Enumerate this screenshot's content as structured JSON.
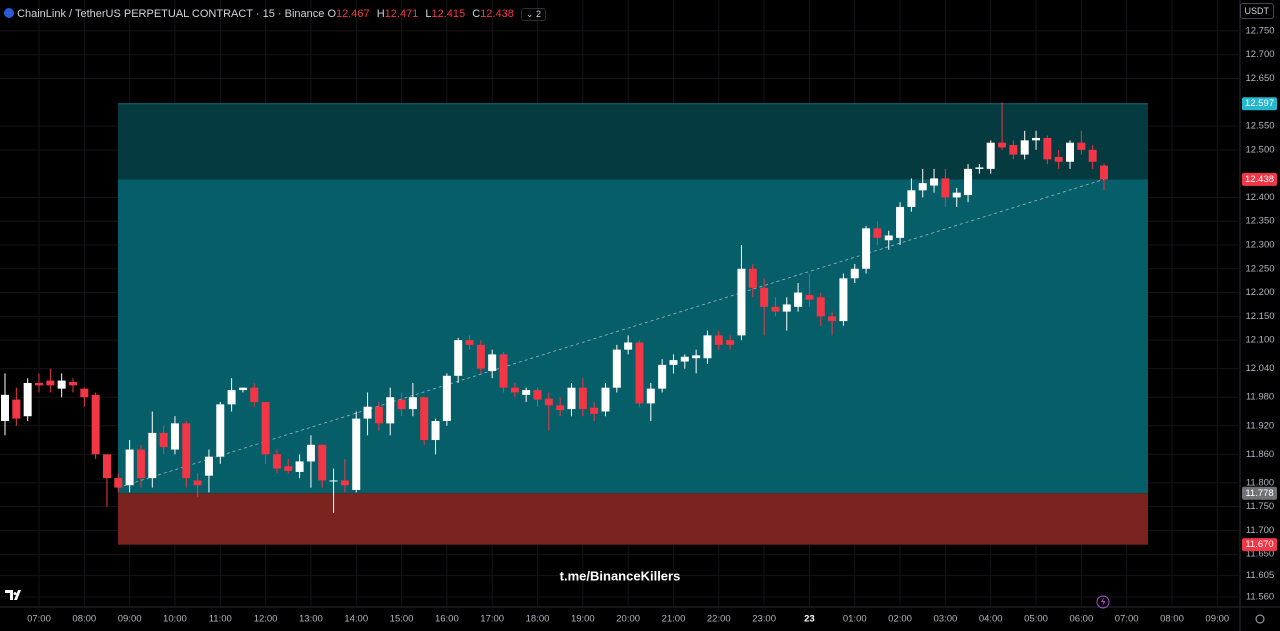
{
  "header": {
    "symbol": "ChainLink / TetherUS PERPETUAL CONTRACT · 15 · Binance",
    "ohlc_letters": [
      "O",
      "H",
      "L",
      "C"
    ],
    "indicator_count": "2",
    "currency": "USDT"
  },
  "watermark": "t.me/BinanceKillers",
  "chart_data": {
    "type": "candlestick",
    "categories": [
      null,
      null,
      null,
      "07:00",
      null,
      null,
      null,
      "08:00",
      null,
      null,
      null,
      "09:00",
      null,
      null,
      null,
      "10:00",
      null,
      null,
      null,
      "11:00",
      null,
      null,
      null,
      "12:00",
      null,
      null,
      null,
      "13:00",
      null,
      null,
      null,
      "14:00",
      null,
      null,
      null,
      "15:00",
      null,
      null,
      null,
      "16:00",
      null,
      null,
      null,
      "17:00",
      null,
      null,
      null,
      "18:00",
      null,
      null,
      null,
      "19:00",
      null,
      null,
      null,
      "20:00",
      null,
      null,
      null,
      "21:00",
      null,
      null,
      null,
      "22:00",
      null,
      null,
      null,
      "23:00",
      null,
      null,
      null,
      "23",
      null,
      null,
      null,
      "01:00",
      null,
      null,
      null,
      "02:00",
      null,
      null,
      null,
      "03:00",
      null,
      null,
      null,
      "04:00",
      null,
      null,
      null,
      "05:00",
      null,
      null,
      null,
      "06:00",
      null,
      null,
      null,
      "07:00",
      null,
      null,
      null,
      "08:00",
      null,
      null,
      null,
      "09:00",
      null
    ],
    "open": [
      11.93,
      11.975,
      11.94,
      12.01,
      12.015,
      11.998,
      12.012,
      11.998,
      11.985,
      11.86,
      11.81,
      11.795,
      11.87,
      11.81,
      11.905,
      11.87,
      11.925,
      11.805,
      11.815,
      11.855,
      11.965,
      11.995,
      12.0,
      11.97,
      11.86,
      11.835,
      11.823,
      11.845,
      11.88,
      11.805,
      11.805,
      11.785,
      11.935,
      11.96,
      11.925,
      11.975,
      11.955,
      11.98,
      11.89,
      11.93,
      12.025,
      12.1,
      12.09,
      12.035,
      12.07,
      12.0,
      11.985,
      11.995,
      11.977,
      11.963,
      11.955,
      12.0,
      11.958,
      11.95,
      12.0,
      12.08,
      12.095,
      11.967,
      11.998,
      12.048,
      12.055,
      12.062,
      12.062,
      12.11,
      12.1,
      12.11,
      12.25,
      12.21,
      12.17,
      12.16,
      12.17,
      12.195,
      12.19,
      12.15,
      12.14,
      12.23,
      12.25,
      12.335,
      12.31,
      12.315,
      12.38,
      12.415,
      12.425,
      12.44,
      12.4,
      12.405,
      12.46,
      12.46,
      12.515,
      12.51,
      12.49,
      12.52,
      12.525,
      12.485,
      12.475,
      12.515,
      12.5,
      12.467,
      null,
      null,
      null,
      null,
      null,
      null,
      null,
      null,
      null,
      null,
      null
    ],
    "high": [
      12.03,
      12.0,
      12.02,
      12.03,
      12.04,
      12.03,
      12.02,
      12.0,
      11.99,
      11.86,
      11.82,
      11.89,
      11.88,
      11.95,
      11.92,
      11.94,
      11.93,
      11.82,
      11.87,
      11.97,
      12.02,
      12.0,
      12.01,
      11.97,
      11.87,
      11.85,
      11.86,
      11.9,
      11.88,
      11.83,
      11.85,
      11.95,
      11.99,
      11.97,
      12.0,
      11.99,
      12.01,
      11.98,
      11.935,
      12.03,
      12.105,
      12.11,
      12.1,
      12.08,
      12.075,
      12.01,
      12.0,
      12.0,
      11.99,
      11.98,
      12.01,
      12.02,
      11.97,
      12.01,
      12.09,
      12.11,
      12.1,
      12.01,
      12.06,
      12.07,
      12.07,
      12.08,
      12.12,
      12.12,
      12.11,
      12.3,
      12.26,
      12.23,
      12.19,
      12.19,
      12.22,
      12.24,
      12.2,
      12.16,
      12.24,
      12.26,
      12.34,
      12.35,
      12.33,
      12.39,
      12.44,
      12.46,
      12.46,
      12.46,
      12.42,
      12.47,
      12.47,
      12.52,
      12.6,
      12.52,
      12.54,
      12.54,
      12.53,
      12.5,
      12.52,
      12.54,
      12.51,
      12.471,
      null,
      null,
      null,
      null,
      null,
      null,
      null,
      null,
      null,
      null,
      null
    ],
    "low": [
      11.9,
      11.92,
      11.93,
      11.99,
      11.99,
      11.98,
      11.99,
      11.96,
      11.85,
      11.75,
      11.78,
      11.78,
      11.79,
      11.79,
      11.86,
      11.86,
      11.79,
      11.77,
      11.78,
      11.84,
      11.95,
      11.99,
      11.96,
      11.84,
      11.82,
      11.82,
      11.81,
      11.79,
      11.79,
      11.737,
      11.78,
      11.78,
      11.9,
      11.91,
      11.9,
      11.94,
      11.94,
      11.88,
      11.86,
      11.92,
      12.01,
      12.08,
      12.03,
      12.02,
      11.99,
      11.98,
      11.97,
      11.96,
      11.91,
      11.94,
      11.94,
      11.94,
      11.93,
      11.94,
      11.99,
      12.07,
      11.96,
      11.93,
      11.99,
      12.03,
      12.04,
      12.03,
      12.05,
      12.08,
      12.08,
      12.1,
      12.19,
      12.11,
      12.15,
      12.12,
      12.16,
      12.17,
      12.13,
      12.11,
      12.13,
      12.22,
      12.24,
      12.3,
      12.29,
      12.3,
      12.37,
      12.4,
      12.41,
      12.38,
      12.38,
      12.39,
      12.45,
      12.45,
      12.5,
      12.48,
      12.48,
      12.5,
      12.47,
      12.46,
      12.46,
      12.49,
      12.46,
      12.415,
      null,
      null,
      null,
      null,
      null,
      null,
      null,
      null,
      null,
      null,
      null
    ],
    "close": [
      11.985,
      11.935,
      12.01,
      12.005,
      12.005,
      12.015,
      12.005,
      11.98,
      11.86,
      11.81,
      11.79,
      11.87,
      11.81,
      11.905,
      11.875,
      11.925,
      11.81,
      11.795,
      11.855,
      11.965,
      11.995,
      12.0,
      11.97,
      11.86,
      11.83,
      11.825,
      11.845,
      11.88,
      11.805,
      11.805,
      11.795,
      11.935,
      11.96,
      11.925,
      11.98,
      11.955,
      11.98,
      11.89,
      11.93,
      12.025,
      12.1,
      12.09,
      12.04,
      12.07,
      12.0,
      11.99,
      11.995,
      11.975,
      11.963,
      11.953,
      12.0,
      11.955,
      11.945,
      12.0,
      12.08,
      12.095,
      11.967,
      11.998,
      12.048,
      12.058,
      12.065,
      12.068,
      12.11,
      12.09,
      12.09,
      12.25,
      12.21,
      12.17,
      12.16,
      12.175,
      12.2,
      12.185,
      12.15,
      12.14,
      12.23,
      12.25,
      12.335,
      12.315,
      12.32,
      12.38,
      12.415,
      12.43,
      12.44,
      12.4,
      12.41,
      12.46,
      12.463,
      12.515,
      12.505,
      12.49,
      12.52,
      12.525,
      12.48,
      12.475,
      12.515,
      12.5,
      12.475,
      12.438,
      null,
      null,
      null,
      null,
      null,
      null,
      null,
      null,
      null,
      null,
      null
    ],
    "up_color": "#ffffff",
    "down_color": "#f23645",
    "ylim": [
      11.539,
      12.815
    ],
    "yticks": [
      {
        "value": 12.75,
        "label": "12.750"
      },
      {
        "value": 12.7,
        "label": "12.700"
      },
      {
        "value": 12.65,
        "label": "12.650"
      },
      {
        "value": 12.55,
        "label": "12.550"
      },
      {
        "value": 12.5,
        "label": "12.500"
      },
      {
        "value": 12.4,
        "label": "12.400"
      },
      {
        "value": 12.35,
        "label": "12.350"
      },
      {
        "value": 12.3,
        "label": "12.300"
      },
      {
        "value": 12.25,
        "label": "12.250"
      },
      {
        "value": 12.2,
        "label": "12.200"
      },
      {
        "value": 12.15,
        "label": "12.150"
      },
      {
        "value": 12.1,
        "label": "12.100"
      },
      {
        "value": 12.04,
        "label": "12.040"
      },
      {
        "value": 11.98,
        "label": "11.980"
      },
      {
        "value": 11.92,
        "label": "11.920"
      },
      {
        "value": 11.86,
        "label": "11.860"
      },
      {
        "value": 11.8,
        "label": "11.800"
      },
      {
        "value": 11.75,
        "label": "11.750"
      },
      {
        "value": 11.7,
        "label": "11.700"
      },
      {
        "value": 11.65,
        "label": "11.650"
      },
      {
        "value": 11.605,
        "label": "11.605"
      },
      {
        "value": 11.56,
        "label": "11.560"
      }
    ],
    "grid": true,
    "zones": [
      {
        "top": 12.597,
        "bottom": 12.438,
        "color": "#053a40"
      },
      {
        "top": 12.438,
        "bottom": 11.778,
        "color": "#065e69"
      },
      {
        "top": 11.778,
        "bottom": 11.67,
        "color": "#7a231f"
      }
    ],
    "trendline": [
      11.79,
      12.438
    ],
    "price_labels": [
      {
        "value": 12.597,
        "label": "12.597",
        "color": "#22b8cf"
      },
      {
        "value": 12.438,
        "label": "12.438",
        "color": "#f23645"
      },
      {
        "value": 11.778,
        "label": "11.778",
        "color": "#6f7277"
      },
      {
        "value": 11.67,
        "label": "11.670",
        "color": "#f23645"
      }
    ]
  }
}
